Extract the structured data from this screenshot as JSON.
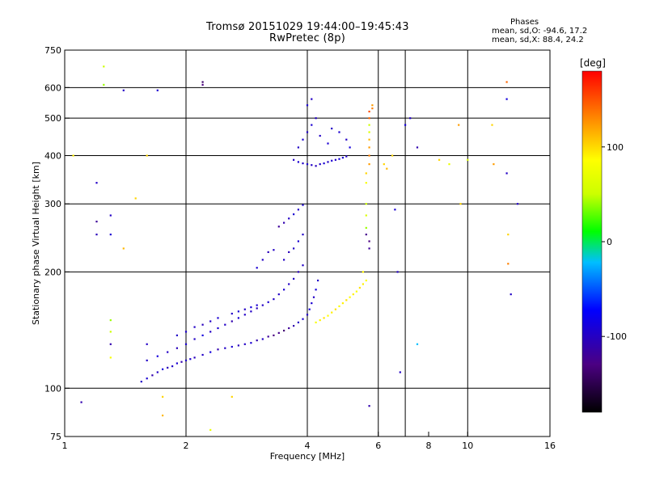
{
  "header": {
    "title": "Tromsø 20151029 19:44:00–19:45:43",
    "subtitle": "RwPretec (8p)",
    "phases_title": "Phases",
    "phases_o": "mean, sd,O: -94.6, 17.2",
    "phases_x": "mean, sd,X:  88.4, 24.2"
  },
  "chart_data": {
    "type": "scatter",
    "xlabel": "Frequency [MHz]",
    "ylabel": "Stationary phase Virtual Height [km]",
    "xscale": "log",
    "yscale": "log",
    "xlim": [
      1,
      16
    ],
    "ylim": [
      75,
      750
    ],
    "xticks": [
      1,
      2,
      4,
      6,
      8,
      10,
      16
    ],
    "xtick_labels": [
      "1",
      "2",
      "4",
      "6",
      "8",
      "10",
      "16"
    ],
    "xgrid": [
      2,
      4,
      6,
      7,
      10
    ],
    "yticks": [
      75,
      100,
      200,
      300,
      400,
      500,
      600,
      750
    ],
    "ytick_labels": [
      "75",
      "100",
      "200",
      "300",
      "400",
      "500",
      "600",
      "750"
    ],
    "ygrid": [
      100,
      200,
      300,
      400,
      500,
      600
    ],
    "grid": true,
    "colorbar": {
      "label": "[deg]",
      "range": [
        -180,
        180
      ],
      "ticks": [
        100,
        0,
        -100
      ],
      "tick_labels": [
        "100",
        "0",
        "-100"
      ]
    },
    "series": [
      {
        "description": "O-mode E/F1 trace",
        "points": [
          [
            1.55,
            104,
            -100
          ],
          [
            1.6,
            106,
            -95
          ],
          [
            1.65,
            108,
            -110
          ],
          [
            1.7,
            110,
            -100
          ],
          [
            1.75,
            112,
            -90
          ],
          [
            1.8,
            113,
            -105
          ],
          [
            1.85,
            114,
            -100
          ],
          [
            1.9,
            116,
            -95
          ],
          [
            1.95,
            117,
            -110
          ],
          [
            2.0,
            118,
            -100
          ],
          [
            2.05,
            119,
            -95
          ],
          [
            2.1,
            120,
            -105
          ],
          [
            2.2,
            122,
            -100
          ],
          [
            2.3,
            124,
            -90
          ],
          [
            2.4,
            126,
            -110
          ],
          [
            2.5,
            127,
            -100
          ],
          [
            2.6,
            128,
            -95
          ],
          [
            2.7,
            129,
            -105
          ],
          [
            2.8,
            130,
            -100
          ],
          [
            2.9,
            131,
            -95
          ],
          [
            3.0,
            133,
            -110
          ],
          [
            3.1,
            134,
            -100
          ],
          [
            3.2,
            136,
            -120
          ],
          [
            3.3,
            137,
            -130
          ],
          [
            3.4,
            139,
            -125
          ],
          [
            3.5,
            141,
            -135
          ],
          [
            3.6,
            143,
            -120
          ],
          [
            3.7,
            145,
            -110
          ],
          [
            3.8,
            148,
            -100
          ],
          [
            3.9,
            151,
            -95
          ],
          [
            4.0,
            155,
            -100
          ],
          [
            4.05,
            160,
            -90
          ],
          [
            4.1,
            166,
            -95
          ],
          [
            4.15,
            172,
            -100
          ],
          [
            4.2,
            180,
            -90
          ],
          [
            4.25,
            190,
            -100
          ],
          [
            1.6,
            118,
            -100
          ],
          [
            1.7,
            121,
            -90
          ],
          [
            1.8,
            124,
            -100
          ],
          [
            1.9,
            127,
            -105
          ],
          [
            2.0,
            130,
            -95
          ],
          [
            2.1,
            134,
            -100
          ],
          [
            2.2,
            137,
            -90
          ],
          [
            2.3,
            140,
            -100
          ],
          [
            2.4,
            143,
            -95
          ],
          [
            2.5,
            146,
            -100
          ],
          [
            2.6,
            149,
            -110
          ],
          [
            2.7,
            152,
            -95
          ],
          [
            2.8,
            155,
            -100
          ],
          [
            2.9,
            158,
            -100
          ],
          [
            3.0,
            161,
            -105
          ],
          [
            3.1,
            164,
            -100
          ],
          [
            3.2,
            167,
            -95
          ],
          [
            3.3,
            170,
            -100
          ],
          [
            3.4,
            175,
            -100
          ],
          [
            3.5,
            180,
            -95
          ],
          [
            3.6,
            186,
            -100
          ],
          [
            3.7,
            192,
            -100
          ],
          [
            3.8,
            200,
            -105
          ],
          [
            3.9,
            208,
            -100
          ],
          [
            1.9,
            137,
            -100
          ],
          [
            2.0,
            140,
            -95
          ],
          [
            2.1,
            144,
            -100
          ],
          [
            2.2,
            146,
            -105
          ],
          [
            2.3,
            149,
            -100
          ],
          [
            2.4,
            152,
            -95
          ],
          [
            2.6,
            156,
            -100
          ],
          [
            2.7,
            158,
            -95
          ],
          [
            2.8,
            160,
            -100
          ],
          [
            2.9,
            162,
            -90
          ],
          [
            3.0,
            164,
            -95
          ],
          [
            3.5,
            215,
            -100
          ],
          [
            3.6,
            225,
            -105
          ],
          [
            3.7,
            230,
            -100
          ],
          [
            3.8,
            240,
            -95
          ],
          [
            3.9,
            250,
            -100
          ],
          [
            3.3,
            228,
            -100
          ],
          [
            3.2,
            225,
            -105
          ],
          [
            3.1,
            215,
            -100
          ],
          [
            3.0,
            205,
            -95
          ],
          [
            3.4,
            262,
            -120
          ],
          [
            3.5,
            268,
            -110
          ],
          [
            3.6,
            275,
            -100
          ],
          [
            3.7,
            282,
            -95
          ],
          [
            3.8,
            290,
            -100
          ],
          [
            3.9,
            298,
            -95
          ]
        ]
      },
      {
        "description": "O-mode F2 trace",
        "points": [
          [
            3.7,
            390,
            -100
          ],
          [
            3.8,
            385,
            -95
          ],
          [
            3.9,
            382,
            -100
          ],
          [
            4.0,
            380,
            -95
          ],
          [
            4.1,
            378,
            -100
          ],
          [
            4.2,
            376,
            -105
          ],
          [
            4.3,
            380,
            -100
          ],
          [
            4.4,
            382,
            -95
          ],
          [
            4.5,
            385,
            -100
          ],
          [
            4.6,
            388,
            -95
          ],
          [
            4.7,
            390,
            -100
          ],
          [
            4.8,
            392,
            -90
          ],
          [
            4.9,
            395,
            -95
          ],
          [
            5.0,
            398,
            -100
          ],
          [
            3.8,
            420,
            -100
          ],
          [
            3.9,
            440,
            -95
          ],
          [
            4.0,
            460,
            -100
          ],
          [
            4.1,
            480,
            -95
          ],
          [
            4.2,
            500,
            -100
          ],
          [
            4.0,
            540,
            -95
          ],
          [
            4.1,
            560,
            -100
          ],
          [
            4.3,
            450,
            -100
          ],
          [
            4.5,
            430,
            -95
          ],
          [
            4.6,
            470,
            -100
          ],
          [
            4.8,
            460,
            -95
          ],
          [
            5.0,
            440,
            -100
          ],
          [
            5.1,
            420,
            -90
          ]
        ]
      },
      {
        "description": "X-mode traces",
        "points": [
          [
            4.2,
            148,
            80
          ],
          [
            4.3,
            150,
            90
          ],
          [
            4.4,
            152,
            95
          ],
          [
            4.5,
            154,
            85
          ],
          [
            4.6,
            157,
            90
          ],
          [
            4.7,
            160,
            95
          ],
          [
            4.8,
            163,
            80
          ],
          [
            4.9,
            166,
            90
          ],
          [
            5.0,
            169,
            95
          ],
          [
            5.1,
            172,
            85
          ],
          [
            5.2,
            175,
            90
          ],
          [
            5.3,
            178,
            80
          ],
          [
            5.4,
            182,
            95
          ],
          [
            5.5,
            186,
            90
          ],
          [
            5.6,
            190,
            85
          ],
          [
            5.5,
            200,
            88
          ],
          [
            5.6,
            260,
            40
          ],
          [
            5.6,
            280,
            60
          ],
          [
            5.6,
            300,
            50
          ],
          [
            5.6,
            340,
            80
          ],
          [
            5.6,
            360,
            100
          ],
          [
            5.7,
            380,
            120
          ],
          [
            5.7,
            400,
            130
          ],
          [
            5.7,
            420,
            120
          ],
          [
            5.7,
            440,
            110
          ],
          [
            5.7,
            460,
            60
          ],
          [
            5.7,
            480,
            50
          ],
          [
            5.7,
            500,
            140
          ],
          [
            5.7,
            520,
            150
          ],
          [
            5.8,
            530,
            130
          ],
          [
            5.8,
            540,
            120
          ],
          [
            5.7,
            230,
            -120
          ],
          [
            5.7,
            240,
            -130
          ],
          [
            5.6,
            250,
            -125
          ]
        ]
      },
      {
        "description": "Scattered points",
        "points": [
          [
            1.05,
            400,
            90
          ],
          [
            1.1,
            92,
            -110
          ],
          [
            1.2,
            340,
            -100
          ],
          [
            1.25,
            680,
            50
          ],
          [
            1.25,
            610,
            40
          ],
          [
            1.3,
            280,
            -100
          ],
          [
            1.3,
            250,
            -95
          ],
          [
            1.2,
            250,
            -105
          ],
          [
            1.2,
            270,
            -120
          ],
          [
            1.4,
            590,
            -100
          ],
          [
            1.7,
            590,
            -95
          ],
          [
            2.2,
            610,
            -130
          ],
          [
            2.2,
            620,
            -140
          ],
          [
            1.75,
            95,
            100
          ],
          [
            1.75,
            85,
            110
          ],
          [
            2.3,
            78,
            70
          ],
          [
            2.6,
            95,
            100
          ],
          [
            1.6,
            400,
            100
          ],
          [
            6.2,
            380,
            100
          ],
          [
            6.3,
            370,
            110
          ],
          [
            6.5,
            400,
            100
          ],
          [
            6.6,
            290,
            -95
          ],
          [
            6.7,
            200,
            -100
          ],
          [
            7.0,
            480,
            -90
          ],
          [
            7.2,
            500,
            -100
          ],
          [
            7.5,
            420,
            -110
          ],
          [
            7.5,
            130,
            -20
          ],
          [
            6.8,
            110,
            -100
          ],
          [
            8.5,
            390,
            100
          ],
          [
            9.0,
            380,
            70
          ],
          [
            9.5,
            480,
            120
          ],
          [
            9.6,
            300,
            100
          ],
          [
            10.0,
            390,
            60
          ],
          [
            11.5,
            480,
            100
          ],
          [
            11.6,
            380,
            120
          ],
          [
            12.5,
            360,
            -100
          ],
          [
            12.5,
            560,
            -90
          ],
          [
            12.5,
            620,
            140
          ],
          [
            12.6,
            250,
            100
          ],
          [
            12.6,
            210,
            130
          ],
          [
            13.3,
            300,
            -100
          ],
          [
            12.8,
            175,
            -100
          ],
          [
            5.7,
            90,
            -110
          ],
          [
            1.3,
            130,
            -110
          ],
          [
            1.3,
            140,
            50
          ],
          [
            1.3,
            150,
            40
          ],
          [
            1.3,
            120,
            80
          ],
          [
            1.5,
            310,
            100
          ],
          [
            1.4,
            230,
            110
          ],
          [
            1.6,
            130,
            -100
          ]
        ]
      }
    ]
  }
}
